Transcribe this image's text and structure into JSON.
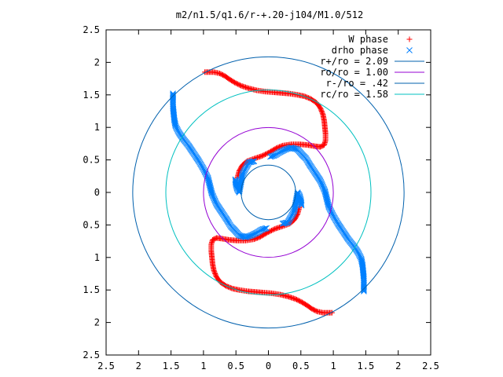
{
  "chart_data": {
    "type": "scatter",
    "title": "m2/n1.5/q1.6/r-+.20-j104/M1.0/512",
    "xlabel": "",
    "ylabel": "",
    "xlim": [
      -2.5,
      2.5
    ],
    "ylim": [
      -2.5,
      2.5
    ],
    "x_ticks": [
      -2.5,
      -2,
      -1.5,
      -1,
      -0.5,
      0,
      0.5,
      1,
      1.5,
      2,
      2.5
    ],
    "y_ticks": [
      -2.5,
      -2,
      -1.5,
      -1,
      -0.5,
      0,
      0.5,
      1,
      1.5,
      2,
      2.5
    ],
    "x_tick_labels": [
      "2.5",
      "2",
      "1.5",
      "1",
      "0.5",
      "0",
      "0.5",
      "1",
      "1.5",
      "2",
      "2.5"
    ],
    "y_tick_labels": [
      "2.5",
      "2",
      "1.5",
      "1",
      "0.5",
      "0",
      "0.5",
      "1",
      "1.5",
      "2",
      "2.5"
    ],
    "grid": false,
    "legend_position": "top-right",
    "series": [
      {
        "name": "W phase",
        "kind": "scatter",
        "marker": "plus",
        "color": "#ff0000",
        "points": [
          [
            -0.48,
            0.22
          ],
          [
            -0.45,
            0.33
          ],
          [
            -0.4,
            0.42
          ],
          [
            -0.33,
            0.48
          ],
          [
            -0.22,
            0.52
          ],
          [
            -0.1,
            0.56
          ],
          [
            0.02,
            0.62
          ],
          [
            0.12,
            0.68
          ],
          [
            0.22,
            0.72
          ],
          [
            0.35,
            0.74
          ],
          [
            0.48,
            0.74
          ],
          [
            0.6,
            0.73
          ],
          [
            0.72,
            0.71
          ],
          [
            0.8,
            0.7
          ],
          [
            0.86,
            0.73
          ],
          [
            0.88,
            0.8
          ],
          [
            0.88,
            0.9
          ],
          [
            0.87,
            1.0
          ],
          [
            0.86,
            1.1
          ],
          [
            0.84,
            1.2
          ],
          [
            0.8,
            1.3
          ],
          [
            0.74,
            1.38
          ],
          [
            0.65,
            1.44
          ],
          [
            0.55,
            1.48
          ],
          [
            0.45,
            1.5
          ],
          [
            0.32,
            1.52
          ],
          [
            0.2,
            1.53
          ],
          [
            0.08,
            1.54
          ],
          [
            -0.05,
            1.55
          ],
          [
            -0.18,
            1.57
          ],
          [
            -0.3,
            1.6
          ],
          [
            -0.42,
            1.64
          ],
          [
            -0.52,
            1.69
          ],
          [
            -0.6,
            1.74
          ],
          [
            -0.67,
            1.79
          ],
          [
            -0.75,
            1.83
          ],
          [
            -0.84,
            1.85
          ],
          [
            -0.98,
            1.85
          ],
          [
            0.48,
            -0.22
          ],
          [
            0.45,
            -0.33
          ],
          [
            0.4,
            -0.42
          ],
          [
            0.33,
            -0.48
          ],
          [
            0.22,
            -0.52
          ],
          [
            0.1,
            -0.56
          ],
          [
            -0.02,
            -0.62
          ],
          [
            -0.12,
            -0.68
          ],
          [
            -0.22,
            -0.72
          ],
          [
            -0.35,
            -0.74
          ],
          [
            -0.48,
            -0.74
          ],
          [
            -0.6,
            -0.73
          ],
          [
            -0.72,
            -0.71
          ],
          [
            -0.8,
            -0.7
          ],
          [
            -0.86,
            -0.73
          ],
          [
            -0.88,
            -0.8
          ],
          [
            -0.88,
            -0.9
          ],
          [
            -0.87,
            -1.0
          ],
          [
            -0.86,
            -1.1
          ],
          [
            -0.84,
            -1.2
          ],
          [
            -0.8,
            -1.3
          ],
          [
            -0.74,
            -1.38
          ],
          [
            -0.65,
            -1.44
          ],
          [
            -0.55,
            -1.48
          ],
          [
            -0.45,
            -1.5
          ],
          [
            -0.32,
            -1.52
          ],
          [
            -0.2,
            -1.53
          ],
          [
            -0.08,
            -1.54
          ],
          [
            0.05,
            -1.55
          ],
          [
            0.18,
            -1.57
          ],
          [
            0.3,
            -1.6
          ],
          [
            0.42,
            -1.64
          ],
          [
            0.52,
            -1.69
          ],
          [
            0.6,
            -1.74
          ],
          [
            0.67,
            -1.79
          ],
          [
            0.75,
            -1.83
          ],
          [
            0.84,
            -1.85
          ],
          [
            0.98,
            -1.85
          ]
        ]
      },
      {
        "name": "drho phase",
        "kind": "scatter",
        "marker": "cross",
        "color": "#0080ff",
        "points": [
          [
            -1.47,
            1.52
          ],
          [
            -1.47,
            1.42
          ],
          [
            -1.47,
            1.32
          ],
          [
            -1.46,
            1.22
          ],
          [
            -1.45,
            1.12
          ],
          [
            -1.43,
            1.02
          ],
          [
            -1.38,
            0.92
          ],
          [
            -1.31,
            0.82
          ],
          [
            -1.23,
            0.72
          ],
          [
            -1.15,
            0.6
          ],
          [
            -1.07,
            0.48
          ],
          [
            -1.0,
            0.36
          ],
          [
            -0.93,
            0.22
          ],
          [
            -0.9,
            0.1
          ],
          [
            -0.87,
            -0.02
          ],
          [
            -0.8,
            -0.18
          ],
          [
            -0.72,
            -0.3
          ],
          [
            -0.64,
            -0.42
          ],
          [
            -0.58,
            -0.52
          ],
          [
            -0.52,
            -0.58
          ],
          [
            -0.45,
            -0.66
          ],
          [
            -0.35,
            -0.69
          ],
          [
            -0.26,
            -0.66
          ],
          [
            -0.18,
            -0.62
          ],
          [
            -0.1,
            -0.57
          ],
          [
            -0.03,
            -0.55
          ],
          [
            -0.51,
            0.2
          ],
          [
            -0.5,
            0.12
          ],
          [
            -0.48,
            0.05
          ],
          [
            -0.45,
            0.0
          ],
          [
            -0.4,
            0.28
          ],
          [
            -0.3,
            0.46
          ],
          [
            -0.22,
            0.48
          ],
          [
            1.47,
            -1.52
          ],
          [
            1.47,
            -1.42
          ],
          [
            1.47,
            -1.32
          ],
          [
            1.46,
            -1.22
          ],
          [
            1.45,
            -1.12
          ],
          [
            1.43,
            -1.02
          ],
          [
            1.38,
            -0.92
          ],
          [
            1.31,
            -0.82
          ],
          [
            1.23,
            -0.72
          ],
          [
            1.15,
            -0.6
          ],
          [
            1.07,
            -0.48
          ],
          [
            1.0,
            -0.36
          ],
          [
            0.93,
            -0.22
          ],
          [
            0.9,
            -0.1
          ],
          [
            0.87,
            0.02
          ],
          [
            0.8,
            0.18
          ],
          [
            0.72,
            0.3
          ],
          [
            0.64,
            0.42
          ],
          [
            0.58,
            0.52
          ],
          [
            0.52,
            0.58
          ],
          [
            0.45,
            0.66
          ],
          [
            0.35,
            0.69
          ],
          [
            0.26,
            0.66
          ],
          [
            0.18,
            0.62
          ],
          [
            0.1,
            0.57
          ],
          [
            0.03,
            0.55
          ],
          [
            0.51,
            -0.2
          ],
          [
            0.5,
            -0.12
          ],
          [
            0.48,
            -0.05
          ],
          [
            0.45,
            0.0
          ],
          [
            0.4,
            -0.28
          ],
          [
            0.3,
            -0.46
          ],
          [
            0.22,
            -0.48
          ]
        ]
      },
      {
        "name": "r+/ro = 2.09",
        "kind": "circle",
        "radius": 2.09,
        "color": "#0060ad"
      },
      {
        "name": "ro/ro = 1.00",
        "kind": "circle",
        "radius": 1.0,
        "color": "#9400d3"
      },
      {
        "name": "r-/ro = .42",
        "kind": "circle",
        "radius": 0.42,
        "color": "#0060ad"
      },
      {
        "name": "rc/ro = 1.58",
        "kind": "circle",
        "radius": 1.58,
        "color": "#00c0c0"
      }
    ]
  }
}
